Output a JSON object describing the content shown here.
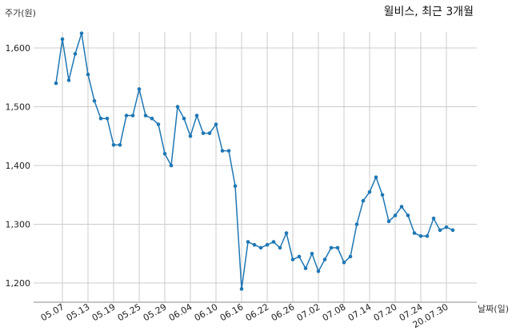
{
  "chart_data": {
    "type": "line",
    "title": "윌비스, 최근 3개월",
    "ylabel": "주가(원)",
    "xlabel": "날짜(일)",
    "ylim": [
      1170,
      1640
    ],
    "yticks": [
      1200,
      1300,
      1400,
      1500,
      1600
    ],
    "ytick_labels": [
      "1,200",
      "1,300",
      "1,400",
      "1,500",
      "1,600"
    ],
    "xtick_labels": [
      "05.07",
      "05.13",
      "05.19",
      "05.25",
      "05.29",
      "06.04",
      "06.10",
      "06.16",
      "06.22",
      "06.26",
      "07.02",
      "07.08",
      "07.14",
      "07.20",
      "07.24",
      "20.07.30"
    ],
    "xtick_index": [
      1,
      5,
      9,
      13,
      17,
      21,
      25,
      29,
      33,
      37,
      41,
      45,
      49,
      53,
      57,
      61
    ],
    "grid": true,
    "colors": {
      "line": "#1f77b4"
    },
    "series": [
      {
        "values": [
          1540,
          1615,
          1545,
          1590,
          1625,
          1555,
          1510,
          1480,
          1480,
          1435,
          1435,
          1485,
          1485,
          1530,
          1485,
          1480,
          1470,
          1420,
          1400,
          1500,
          1480,
          1450,
          1485,
          1455,
          1455,
          1470,
          1425,
          1425,
          1365,
          1190,
          1270,
          1265,
          1260,
          1265,
          1270,
          1260,
          1285,
          1240,
          1245,
          1225,
          1250,
          1220,
          1240,
          1260,
          1260,
          1235,
          1245,
          1300,
          1340,
          1355,
          1380,
          1350,
          1305,
          1315,
          1330,
          1315,
          1285,
          1280,
          1280,
          1310,
          1290,
          1295,
          1290
        ]
      }
    ]
  }
}
